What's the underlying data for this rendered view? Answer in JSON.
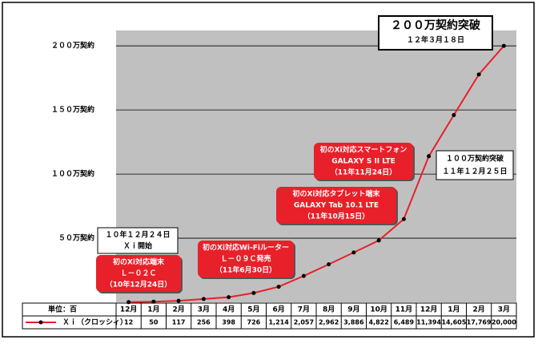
{
  "chart_data": {
    "type": "line",
    "categories": [
      "12月",
      "1月",
      "2月",
      "3月",
      "4月",
      "5月",
      "6月",
      "7月",
      "8月",
      "9月",
      "10月",
      "11月",
      "12月",
      "1月",
      "2月",
      "3月"
    ],
    "unit_label": "単位：百",
    "series": [
      {
        "name": "Ｘｉ（クロッシィ）",
        "color": "#e8202a",
        "marker_color": "#000000",
        "values": [
          12,
          50,
          117,
          256,
          398,
          726,
          1214,
          2057,
          2962,
          3886,
          4822,
          6489,
          11394,
          14605,
          17769,
          20000
        ],
        "value_labels": [
          "12",
          "50",
          "117",
          "256",
          "398",
          "726",
          "1,214",
          "2,057",
          "2,962",
          "3,886",
          "4,822",
          "6,489",
          "11,394",
          "14,605",
          "17,769",
          "20,000"
        ]
      }
    ],
    "ylim": [
      0,
      21200
    ],
    "yticks": [
      {
        "value": 5000,
        "label": "５０万契約"
      },
      {
        "value": 10000,
        "label": "１００万契約"
      },
      {
        "value": 15000,
        "label": "１５０万契約"
      },
      {
        "value": 20000,
        "label": "２００万契約"
      }
    ],
    "grid": true,
    "plot_background": "#c0c0c0",
    "annotations": [
      {
        "lines": [
          "２００万契約突破",
          "１２年３月１８日"
        ],
        "color": "#ffffff"
      },
      {
        "lines": [
          "１００万契約突破",
          "１１年１２月２５日"
        ],
        "color": "#ffffff"
      },
      {
        "lines": [
          "１０年１２月２４日",
          "Ｘｉ開始"
        ],
        "color": "#ffffff"
      },
      {
        "lines": [
          "初のXi対応端末",
          "Ｌ－０２Ｃ",
          "（10年12月24日）"
        ],
        "color": "#e8202a"
      },
      {
        "lines": [
          "初のXi対応Wi-Fiルーター",
          "Ｌ－０９Ｃ発売",
          "（11年6月30日）"
        ],
        "color": "#e8202a"
      },
      {
        "lines": [
          "初のXi対応タブレット端末",
          "GALAXY Tab 10.1 LTE",
          "（11年10月15日）"
        ],
        "color": "#e8202a"
      },
      {
        "lines": [
          "初のXi対応スマートフォン",
          "GALAXY S II LTE",
          "（11年11月24日）"
        ],
        "color": "#e8202a"
      }
    ]
  }
}
